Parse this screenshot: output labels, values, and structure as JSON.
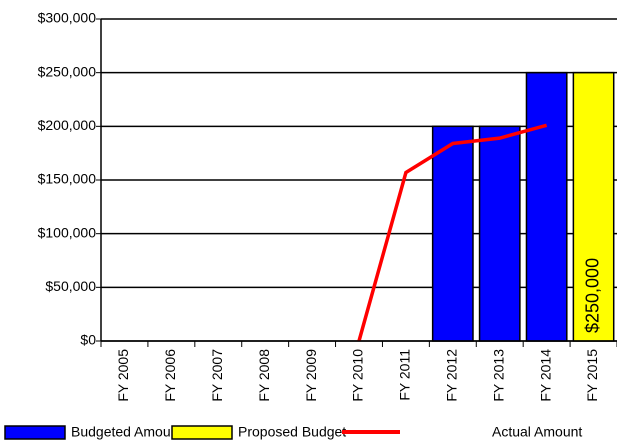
{
  "chart_data": {
    "type": "bar",
    "categories": [
      "FY 2005",
      "FY 2006",
      "FY 2007",
      "FY 2008",
      "FY 2009",
      "FY 2010",
      "FY 2011",
      "FY 2012",
      "FY 2013",
      "FY 2014",
      "FY 2015"
    ],
    "series": [
      {
        "name": "Budgeted Amount",
        "type": "bar",
        "color": "#0000ff",
        "values": [
          null,
          null,
          null,
          null,
          null,
          null,
          null,
          200000,
          200000,
          250000,
          null
        ]
      },
      {
        "name": "Proposed Budget",
        "type": "bar",
        "color": "#ffff00",
        "values": [
          null,
          null,
          null,
          null,
          null,
          null,
          null,
          null,
          null,
          null,
          250000
        ],
        "value_labels": [
          null,
          null,
          null,
          null,
          null,
          null,
          null,
          null,
          null,
          null,
          "$250,000"
        ]
      },
      {
        "name": "Actual Amount",
        "type": "line",
        "color": "#ff0000",
        "values": [
          null,
          null,
          null,
          null,
          null,
          0,
          157000,
          184000,
          189000,
          201000,
          null
        ]
      }
    ],
    "ylim": [
      0,
      300000
    ],
    "yticks": [
      {
        "value": 0,
        "label": "$0"
      },
      {
        "value": 50000,
        "label": "$50,000"
      },
      {
        "value": 100000,
        "label": "$100,000"
      },
      {
        "value": 150000,
        "label": "$150,000"
      },
      {
        "value": 200000,
        "label": "$200,000"
      },
      {
        "value": 250000,
        "label": "$250,000"
      },
      {
        "value": 300000,
        "label": "$300,000"
      }
    ],
    "grid": true,
    "legend": "bottom"
  }
}
